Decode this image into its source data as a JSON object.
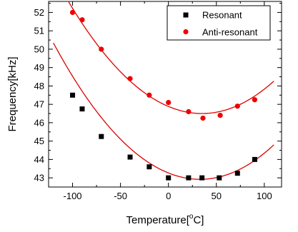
{
  "chart_data": {
    "type": "scatter",
    "title": "",
    "xlabel": "Temperature[",
    "xlabel_unit": "C]",
    "xlabel_sup": "o",
    "ylabel": "Frequency[kHz]",
    "xlim": [
      -125,
      118
    ],
    "ylim": [
      42.5,
      52.6
    ],
    "xticks": [
      -100,
      -50,
      0,
      50,
      100
    ],
    "xtick_labels": [
      "-100",
      "-50",
      "0",
      "50",
      "100"
    ],
    "yticks": [
      43,
      44,
      45,
      46,
      47,
      48,
      49,
      50,
      51,
      52
    ],
    "ytick_labels": [
      "43",
      "44",
      "45",
      "46",
      "47",
      "48",
      "49",
      "50",
      "51",
      "52"
    ],
    "grid": false,
    "legend_position": "top-right",
    "series": [
      {
        "name": "Resonant",
        "marker": "square",
        "color": "#000000",
        "x": [
          -100,
          -90,
          -70,
          -40,
          -20,
          0,
          21,
          35,
          53,
          72,
          90
        ],
        "y": [
          47.5,
          46.75,
          45.25,
          44.13,
          43.6,
          43.0,
          43.0,
          43.0,
          43.0,
          43.25,
          44.0
        ],
        "fit": {
          "color": "#e00000",
          "x_range": [
            -120,
            110
          ],
          "a": 0.000317,
          "h": 33,
          "k": 42.92
        }
      },
      {
        "name": "Anti-resonant",
        "marker": "circle",
        "color": "#ee0000",
        "x": [
          -100,
          -90,
          -70,
          -40,
          -20,
          0,
          21,
          36,
          54,
          72,
          90
        ],
        "y": [
          52.0,
          51.6,
          50.0,
          48.4,
          47.5,
          47.1,
          46.6,
          46.25,
          46.4,
          46.9,
          47.25
        ],
        "fit": {
          "color": "#e00000",
          "x_range": [
            -104,
            110
          ],
          "a": 0.000314,
          "h": 35,
          "k": 46.5
        }
      }
    ]
  }
}
